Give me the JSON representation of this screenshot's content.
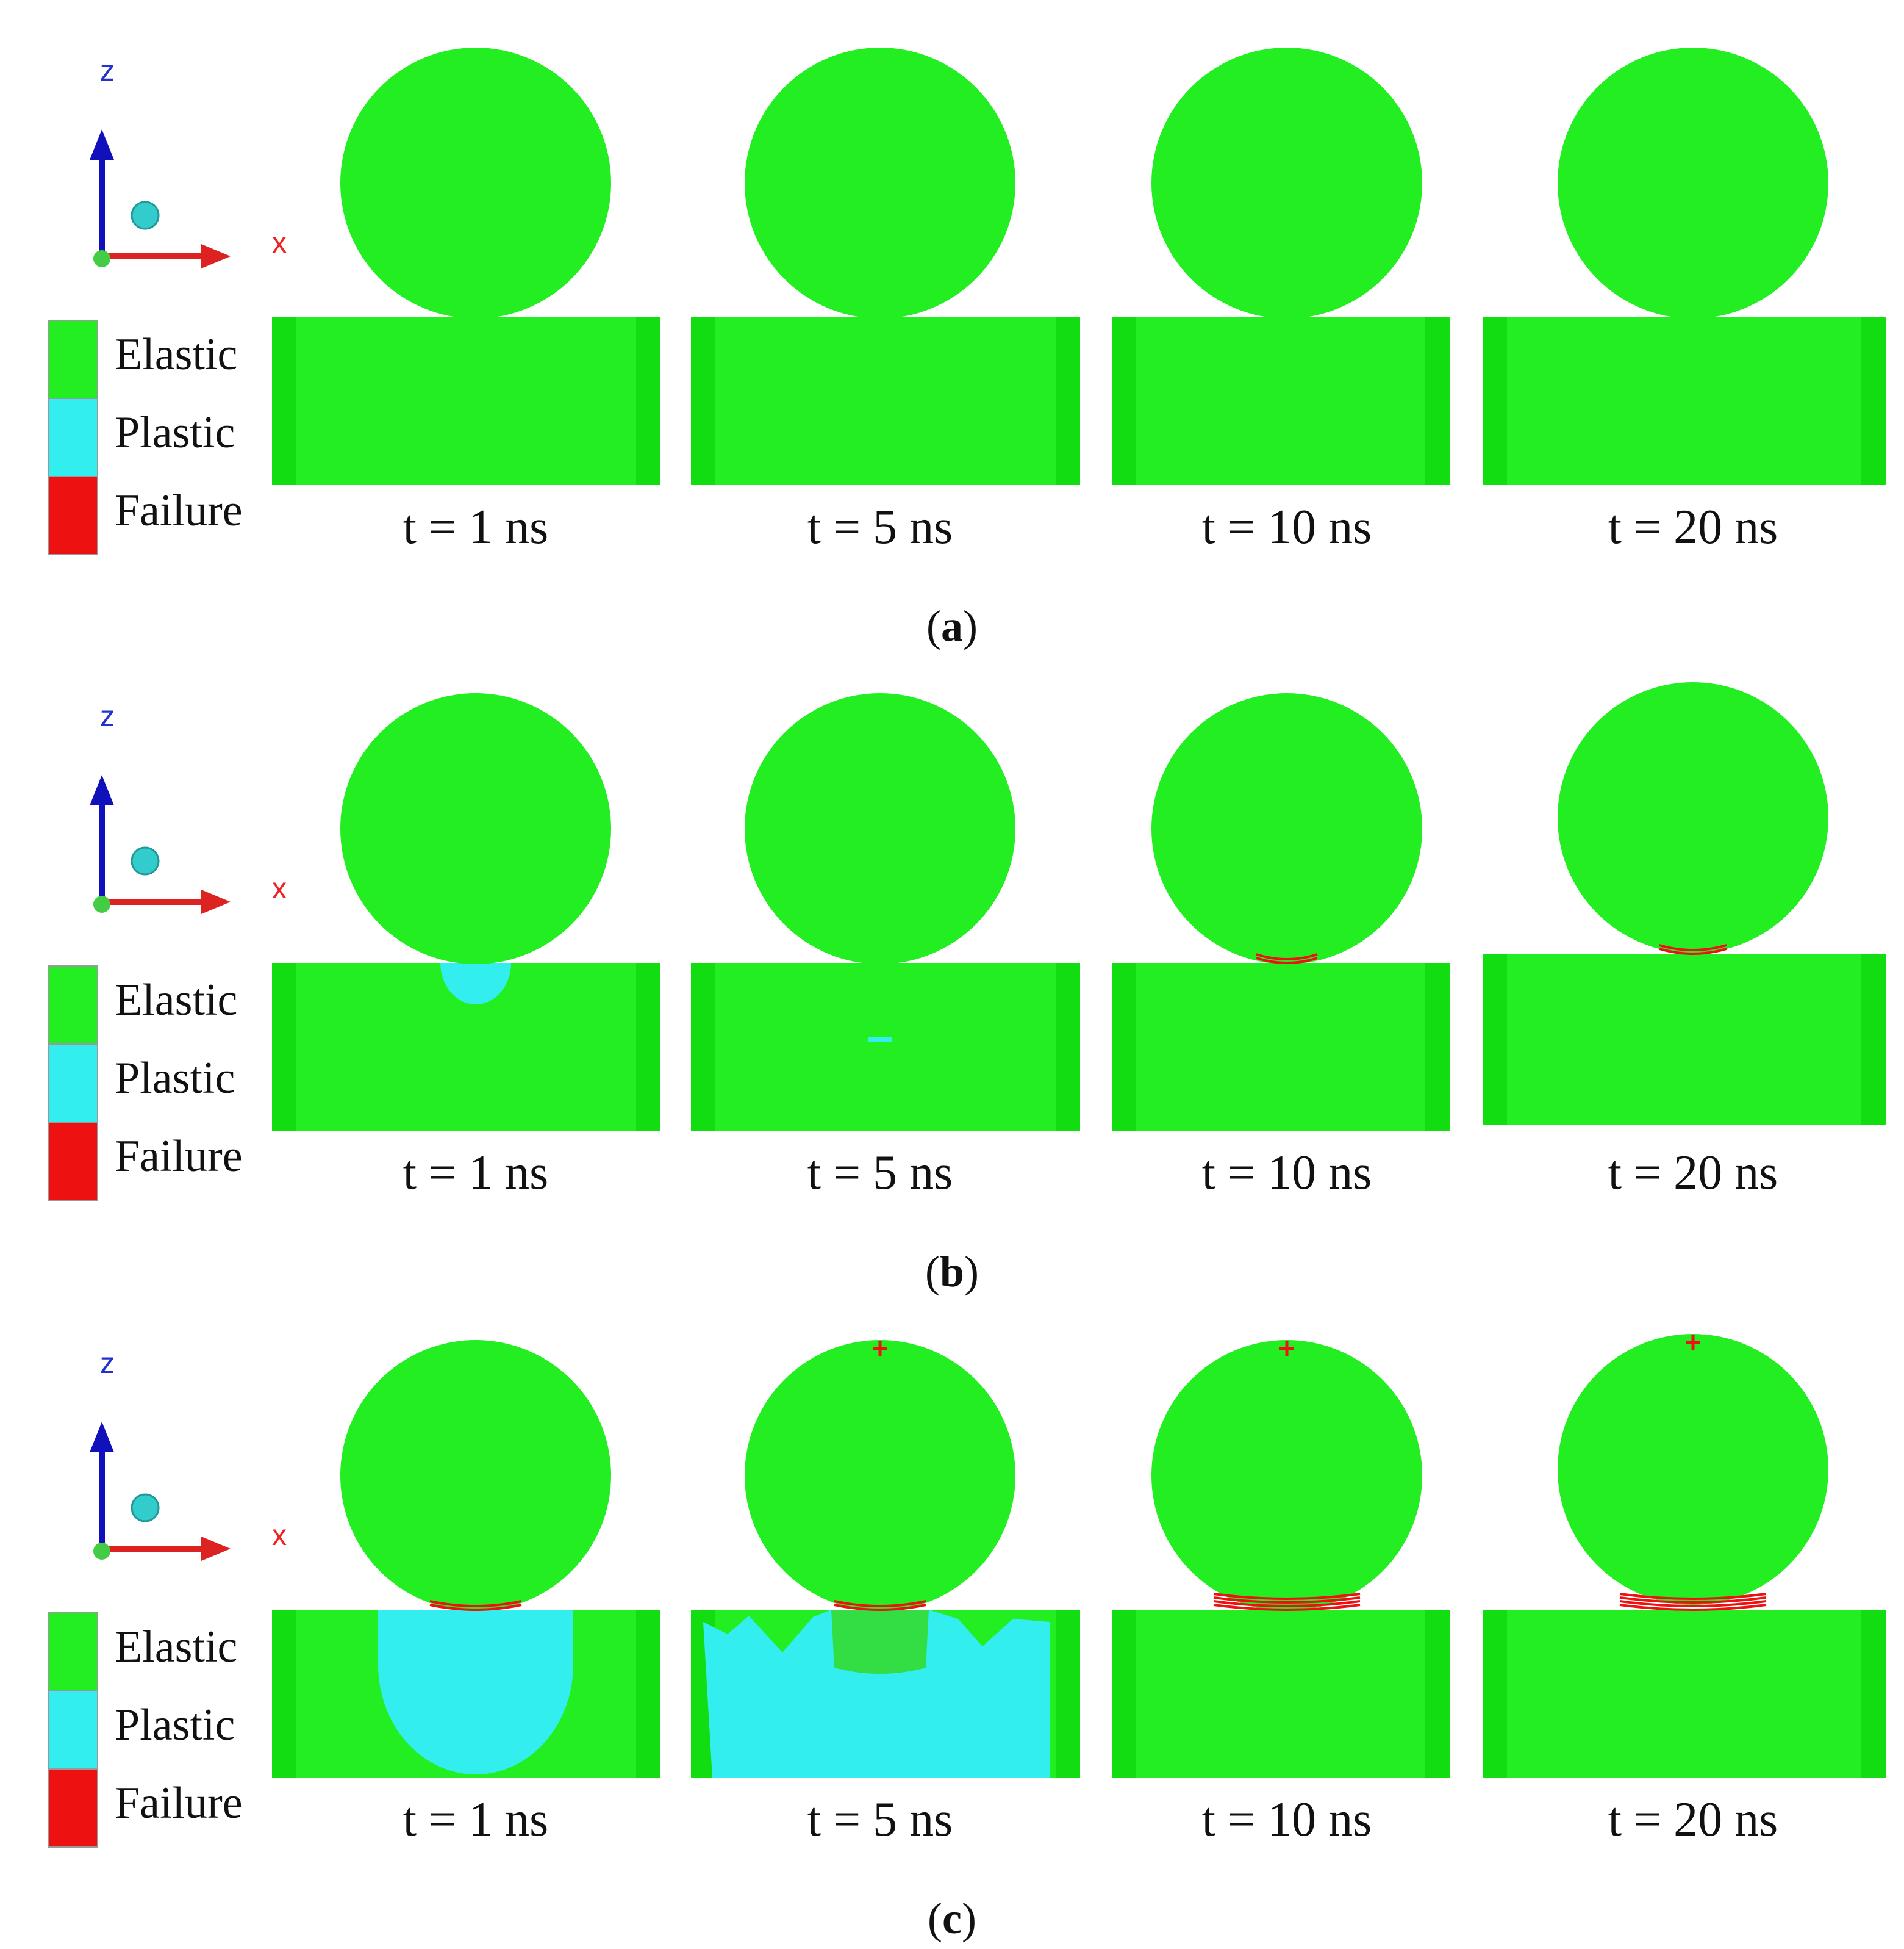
{
  "colors": {
    "elastic": "#22ee22",
    "elastic_dark": "#11dd11",
    "plastic": "#33eeee",
    "failure": "#ee1111",
    "axis_z": "#1111bb",
    "axis_x": "#dd2222",
    "axis_z_label": "#2233cc",
    "axis_x_label": "#ee2222",
    "axis_dot": "#33cccc"
  },
  "legend": {
    "items": [
      {
        "label": "Elastic",
        "color": "#22ee22"
      },
      {
        "label": "Plastic",
        "color": "#33eeee"
      },
      {
        "label": "Failure",
        "color": "#ee1111"
      }
    ]
  },
  "axes": {
    "z_label": "z",
    "x_label": "x"
  },
  "rows": [
    {
      "id": "a",
      "caption_letter": "a",
      "times": [
        "t = 1 ns",
        "t = 5 ns",
        "t = 10 ns",
        "t = 20 ns"
      ]
    },
    {
      "id": "b",
      "caption_letter": "b",
      "times": [
        "t = 1 ns",
        "t = 5 ns",
        "t = 10 ns",
        "t = 20 ns"
      ]
    },
    {
      "id": "c",
      "caption_letter": "c",
      "times": [
        "t = 1 ns",
        "t = 5 ns",
        "t = 10 ns",
        "t = 20 ns"
      ]
    }
  ]
}
